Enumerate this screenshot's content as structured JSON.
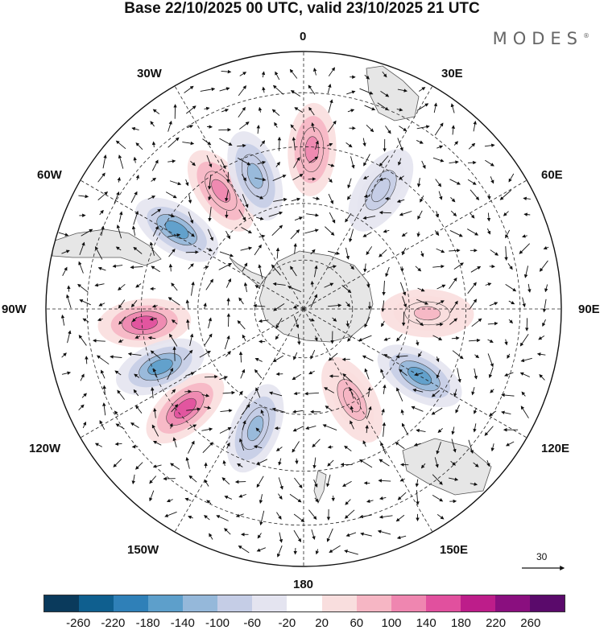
{
  "title": "Base 22/10/2025 00 UTC, valid 23/10/2025 21 UTC",
  "brand": "MODES",
  "brand_mark": "®",
  "longitude_labels": {
    "top": "0",
    "bottom": "180",
    "left": "90W",
    "right": "90E",
    "w30": "30W",
    "e30": "30E",
    "w60": "60W",
    "e60": "60E",
    "w120": "120W",
    "e120": "120E",
    "w150": "150W",
    "e150": "150E"
  },
  "reference_vector": {
    "label": "30",
    "units_shown": "30"
  },
  "colorbar": {
    "colors": [
      "#0a3a5c",
      "#0f5f8f",
      "#2f80b8",
      "#5d9fcb",
      "#95b8da",
      "#c5cde6",
      "#e4e4f0",
      "#ffffff",
      "#f9dede",
      "#f6b6c4",
      "#ef86b0",
      "#e1509e",
      "#bd1d8a",
      "#8a0f7f",
      "#5a0a6b"
    ],
    "tick_labels": [
      "-260",
      "-220",
      "-180",
      "-140",
      "-100",
      "-60",
      "-20",
      "20",
      "60",
      "100",
      "140",
      "180",
      "220",
      "260"
    ]
  },
  "field_anomalies": [
    {
      "name": "positive-lobe-1",
      "lon_deg": -95,
      "lat_ring": 0.62,
      "value": 160
    },
    {
      "name": "negative-lobe-1",
      "lon_deg": -58,
      "lat_ring": 0.58,
      "value": -150
    },
    {
      "name": "positive-lobe-2",
      "lon_deg": -35,
      "lat_ring": 0.56,
      "value": 120
    },
    {
      "name": "negative-lobe-2",
      "lon_deg": -20,
      "lat_ring": 0.55,
      "value": -120
    },
    {
      "name": "positive-lobe-3",
      "lon_deg": 3,
      "lat_ring": 0.62,
      "value": 110
    },
    {
      "name": "negative-lobe-3",
      "lon_deg": 33,
      "lat_ring": 0.55,
      "value": -80
    },
    {
      "name": "positive-lobe-4",
      "lon_deg": 92,
      "lat_ring": 0.48,
      "value": 60
    },
    {
      "name": "negative-lobe-4",
      "lon_deg": 120,
      "lat_ring": 0.52,
      "value": -170
    },
    {
      "name": "positive-lobe-5",
      "lon_deg": 152,
      "lat_ring": 0.4,
      "value": 90
    },
    {
      "name": "negative-lobe-5",
      "lon_deg": -158,
      "lat_ring": 0.5,
      "value": -110
    },
    {
      "name": "positive-lobe-6",
      "lon_deg": -130,
      "lat_ring": 0.6,
      "value": 170
    },
    {
      "name": "negative-lobe-6",
      "lon_deg": -112,
      "lat_ring": 0.6,
      "value": -160
    }
  ]
}
